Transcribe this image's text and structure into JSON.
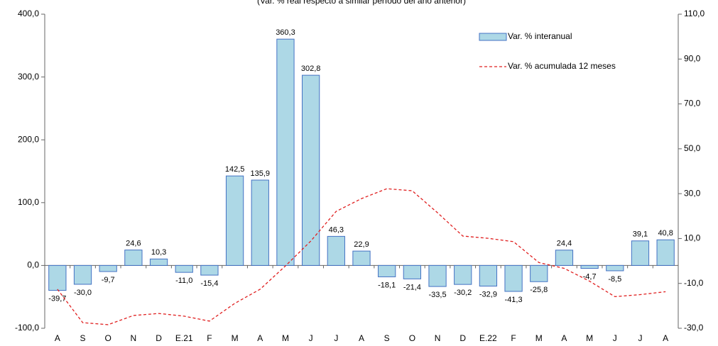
{
  "chart_data": {
    "type": "bar_line",
    "title": "(Var. % real respecto a similar período del año anterior)",
    "categories": [
      "A",
      "S",
      "O",
      "N",
      "D",
      "E.21",
      "F",
      "M",
      "A",
      "M",
      "J",
      "J",
      "A",
      "S",
      "O",
      "N",
      "D",
      "E.22",
      "F",
      "M",
      "A",
      "M",
      "J",
      "J",
      "A"
    ],
    "series": [
      {
        "name": "Var. % interanual",
        "type": "bar",
        "color": "#add8e6",
        "edge_color": "#4472c4",
        "values": [
          -39.7,
          -30.0,
          -9.7,
          24.6,
          10.3,
          -11.0,
          -15.4,
          142.5,
          135.9,
          360.3,
          302.8,
          46.3,
          22.9,
          -18.1,
          -21.4,
          -33.5,
          -30.2,
          -32.9,
          -41.3,
          -25.8,
          24.4,
          -4.7,
          -8.5,
          39.1,
          40.8
        ],
        "value_labels": [
          "-39,7",
          "-30,0",
          "-9,7",
          "24,6",
          "10,3",
          "-11,0",
          "-15,4",
          "142,5",
          "135,9",
          "360,3",
          "302,8",
          "46,3",
          "22,9",
          "-18,1",
          "-21,4",
          "-33,5",
          "-30,2",
          "-32,9",
          "-41,3",
          "-25,8",
          "24,4",
          "-4,7",
          "-8,5",
          "39,1",
          "40,8"
        ]
      },
      {
        "name": "Var. % acumulada 12 meses",
        "type": "line",
        "axis": "y2",
        "color": "#e02020",
        "values": [
          -12.6,
          -27.5,
          -28.4,
          -24.3,
          -23.4,
          -24.6,
          -26.8,
          -18.9,
          -12.6,
          -2.2,
          8.9,
          22.1,
          27.8,
          32.2,
          31.3,
          21.5,
          11.1,
          10.1,
          8.6,
          -0.7,
          -3.3,
          -9.0,
          -15.9,
          -15.0,
          -13.7
        ]
      }
    ],
    "ylim": [
      -100,
      400
    ],
    "yticks": [
      {
        "value": -100,
        "label": "-100,0"
      },
      {
        "value": 0,
        "label": "0,0"
      },
      {
        "value": 100,
        "label": "100,0"
      },
      {
        "value": 200,
        "label": "200,0"
      },
      {
        "value": 300,
        "label": "300,0"
      },
      {
        "value": 400,
        "label": "400,0"
      }
    ],
    "y2lim": [
      -30,
      110
    ],
    "y2ticks": [
      {
        "value": -30,
        "label": "-30,0"
      },
      {
        "value": -10,
        "label": "-10,0"
      },
      {
        "value": 10,
        "label": "10,0"
      },
      {
        "value": 30,
        "label": "30,0"
      },
      {
        "value": 50,
        "label": "50,0"
      },
      {
        "value": 70,
        "label": "70,0"
      },
      {
        "value": 90,
        "label": "90,0"
      },
      {
        "value": 110,
        "label": "110,0"
      }
    ],
    "legend": "upper-right"
  }
}
